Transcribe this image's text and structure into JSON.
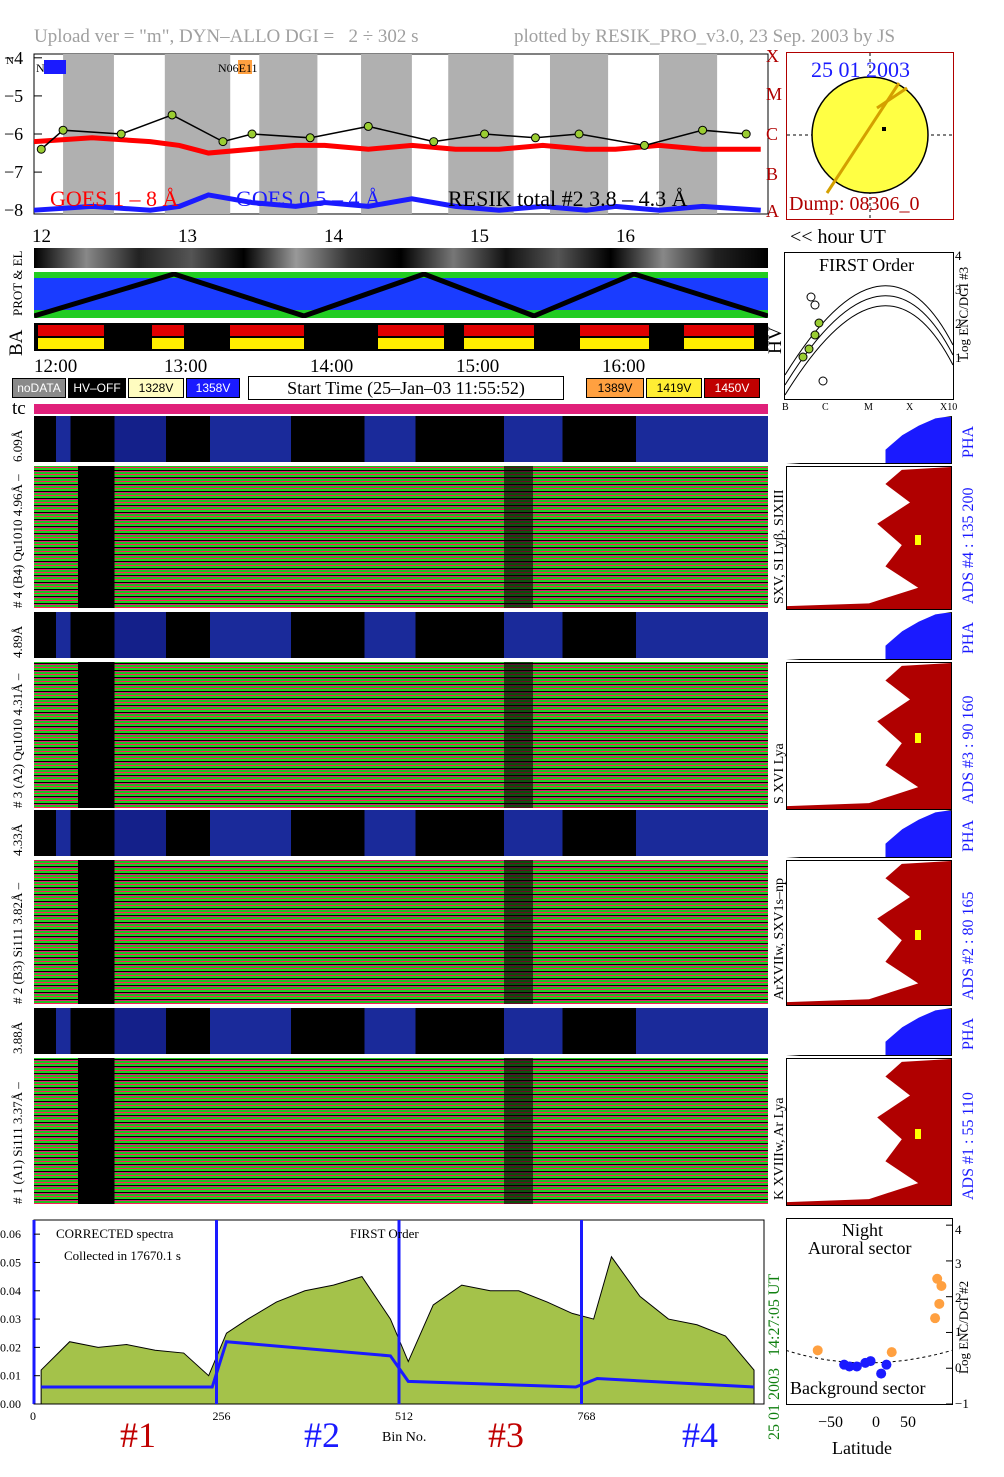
{
  "header": {
    "left": "Upload ver = \"m\", DYN–ALLO DGI =   2 ÷ 302 s",
    "right": "plotted by RESIK_PRO_v3.0, 23 Sep. 2003 by JS"
  },
  "top_panel": {
    "legend_goes1": "GOES 1 – 8 Å",
    "legend_goes05": "GOES 0.5 – 4 Å",
    "legend_resik": "RESIK total #2  3.8 – 4.3 Å",
    "ylabel_n": "N",
    "marker_left": "N",
    "marker_mid": "N06E11",
    "y_ticks": [
      "−4",
      "−5",
      "−6",
      "−7",
      "−8"
    ],
    "class_labels": [
      "X",
      "M",
      "C",
      "B",
      "A"
    ],
    "hour_ticks": [
      "12",
      "13",
      "14",
      "15",
      "16"
    ],
    "hour_label": "<< hour UT"
  },
  "sun_panel": {
    "date": "25 01 2003",
    "dump": "Dump: 08306_0"
  },
  "strip_labels": {
    "prot_el": "PROT & EL",
    "ba": "BA",
    "hv": "HV"
  },
  "time_axis": {
    "ticks": [
      "12:00",
      "13:00",
      "14:00",
      "15:00",
      "16:00"
    ]
  },
  "legend_boxes": {
    "nodata": "noDATA",
    "hvoff": "HV–OFF",
    "v1328": "1328V",
    "v1358": "1358V",
    "start_time": "Start Time (25–Jan–03 11:55:52)",
    "v1389": "1389V",
    "v1419": "1419V",
    "v1450": "1450V",
    "tc": "tc"
  },
  "first_order_panel": {
    "title": "FIRST Order",
    "ylabel": "Log ENC/DGI #3",
    "y_ticks": [
      "4",
      "3",
      "2",
      "1",
      "0"
    ],
    "x_ticks": [
      "B",
      "C",
      "M",
      "X",
      "X10"
    ]
  },
  "channels": [
    {
      "pha_label": "6.09Å",
      "label": "# 4 (B4) Qu1010 4.96Å –",
      "ions": "SXV, SI Lyβ, SIXIII",
      "ads": "ADS #4 :  135 200",
      "pha": "PHA"
    },
    {
      "pha_label": "4.89Å",
      "label": "# 3 (A2) Qu1010 4.31Å –",
      "ions": "S XVI Lya",
      "ads": "ADS #3 :  90 160",
      "pha": "PHA"
    },
    {
      "pha_label": "4.33Å",
      "label": "# 2 (B3) Si111 3.82Å –",
      "ions": "ArXVIIw, SXV1s–np",
      "ads": "ADS #2 :  80 165",
      "pha": "PHA"
    },
    {
      "pha_label": "3.88Å",
      "label": "# 1 (A1) Si111 3.37Å –",
      "ions": "K XVIIIw, Ar Lya",
      "ads": "ADS #1 :  55 110",
      "pha": "PHA"
    }
  ],
  "spectra_panel": {
    "caption1": "CORRECTED spectra",
    "caption2": "Collected in 17670.1 s",
    "caption3": "FIRST Order",
    "stamp_time": "14:27:05 UT",
    "stamp_date": "25 01 2003",
    "y_ticks": [
      "0.06",
      "0.05",
      "0.04",
      "0.03",
      "0.02",
      "0.01",
      "0.00"
    ],
    "x_ticks": [
      "0",
      "256",
      "512",
      "768"
    ],
    "xlabel": "Bin No.",
    "channel_marks": [
      "#1",
      "#2",
      "#3",
      "#4"
    ]
  },
  "latitude_panel": {
    "title1": "Night",
    "title2": "Auroral sector",
    "bottom": "Background sector",
    "ylabel": "Log ENC/DGI #2",
    "y_ticks": [
      "4",
      "3",
      "2",
      "1",
      "0",
      "−1"
    ],
    "x_ticks": [
      "−50",
      "0",
      "50"
    ],
    "xlabel": "Latitude"
  },
  "colors": {
    "goes1": "#ff0000",
    "goes05": "#1a1aff",
    "resik": "#000000",
    "points": "#9acd32",
    "ads": "#b00000",
    "pha": "#0000ff",
    "spectrum_fill": "#a4c24a",
    "bg_strip": "#b0b0b0",
    "magenta": "#e0207a"
  },
  "chart_data": [
    {
      "type": "line",
      "title": "",
      "xlabel": "hour UT",
      "ylabel": "",
      "xlim": [
        12.0,
        17.05
      ],
      "ylim": [
        -8.1,
        -3.9
      ],
      "series": [
        {
          "name": "GOES 1 – 8 Å",
          "x": [
            12.0,
            12.4,
            12.8,
            13.0,
            13.2,
            13.5,
            13.8,
            14.0,
            14.3,
            14.6,
            14.9,
            15.2,
            15.5,
            15.8,
            16.0,
            16.3,
            16.6,
            17.0
          ],
          "y": [
            -6.2,
            -6.1,
            -6.2,
            -6.3,
            -6.5,
            -6.4,
            -6.3,
            -6.3,
            -6.4,
            -6.3,
            -6.4,
            -6.4,
            -6.3,
            -6.4,
            -6.4,
            -6.3,
            -6.4,
            -6.4
          ]
        },
        {
          "name": "GOES 0.5 – 4 Å",
          "x": [
            12.0,
            12.4,
            12.8,
            13.0,
            13.2,
            13.5,
            13.8,
            14.0,
            14.3,
            14.6,
            14.9,
            15.2,
            15.5,
            15.8,
            16.0,
            16.3,
            16.6,
            17.0
          ],
          "y": [
            -8.0,
            -7.9,
            -8.0,
            -7.9,
            -7.6,
            -7.8,
            -7.9,
            -7.8,
            -7.9,
            -7.7,
            -7.9,
            -8.0,
            -7.9,
            -8.0,
            -7.9,
            -8.0,
            -7.9,
            -8.0
          ]
        },
        {
          "name": "RESIK total #2  3.8 – 4.3 Å",
          "x": [
            12.05,
            12.2,
            12.6,
            12.95,
            13.3,
            13.5,
            13.9,
            14.3,
            14.75,
            15.1,
            15.45,
            15.75,
            16.2,
            16.6,
            16.9
          ],
          "y": [
            -6.4,
            -5.9,
            -6.0,
            -5.5,
            -6.2,
            -6.0,
            -6.1,
            -5.8,
            -6.2,
            -6.0,
            -6.1,
            -6.0,
            -6.3,
            -5.9,
            -6.0
          ]
        }
      ]
    },
    {
      "type": "area",
      "title": "",
      "xlabel": "Bin No.",
      "ylabel": "",
      "xlim": [
        0,
        1024
      ],
      "ylim": [
        0,
        0.065
      ],
      "series": [
        {
          "name": "CORRECTED spectra",
          "x": [
            10,
            50,
            90,
            130,
            170,
            210,
            245,
            270,
            300,
            340,
            380,
            420,
            460,
            500,
            525,
            560,
            600,
            640,
            680,
            720,
            755,
            785,
            810,
            850,
            890,
            930,
            970,
            1010
          ],
          "y": [
            0.012,
            0.022,
            0.02,
            0.021,
            0.019,
            0.018,
            0.01,
            0.025,
            0.03,
            0.036,
            0.04,
            0.042,
            0.045,
            0.03,
            0.015,
            0.035,
            0.042,
            0.04,
            0.04,
            0.036,
            0.032,
            0.03,
            0.052,
            0.038,
            0.03,
            0.028,
            0.024,
            0.012
          ]
        },
        {
          "name": "background",
          "x": [
            10,
            250,
            270,
            500,
            525,
            760,
            790,
            1010
          ],
          "y": [
            0.006,
            0.006,
            0.022,
            0.017,
            0.008,
            0.006,
            0.009,
            0.006
          ]
        }
      ]
    },
    {
      "type": "scatter",
      "title": "",
      "xlabel": "Latitude",
      "ylabel": "Log ENC/DGI #2",
      "xlim": [
        -75,
        82
      ],
      "ylim": [
        -1.0,
        4.2
      ],
      "series": [
        {
          "name": "Auroral sector",
          "x": [
            -45,
            25,
            68,
            72,
            70,
            66
          ],
          "y": [
            0.5,
            0.45,
            2.5,
            2.3,
            1.8,
            1.4
          ]
        },
        {
          "name": "Background sector",
          "x": [
            -20,
            -15,
            -8,
            0,
            5,
            15,
            20
          ],
          "y": [
            0.1,
            0.05,
            0.05,
            0.15,
            0.2,
            -0.15,
            0.1
          ]
        }
      ]
    }
  ]
}
